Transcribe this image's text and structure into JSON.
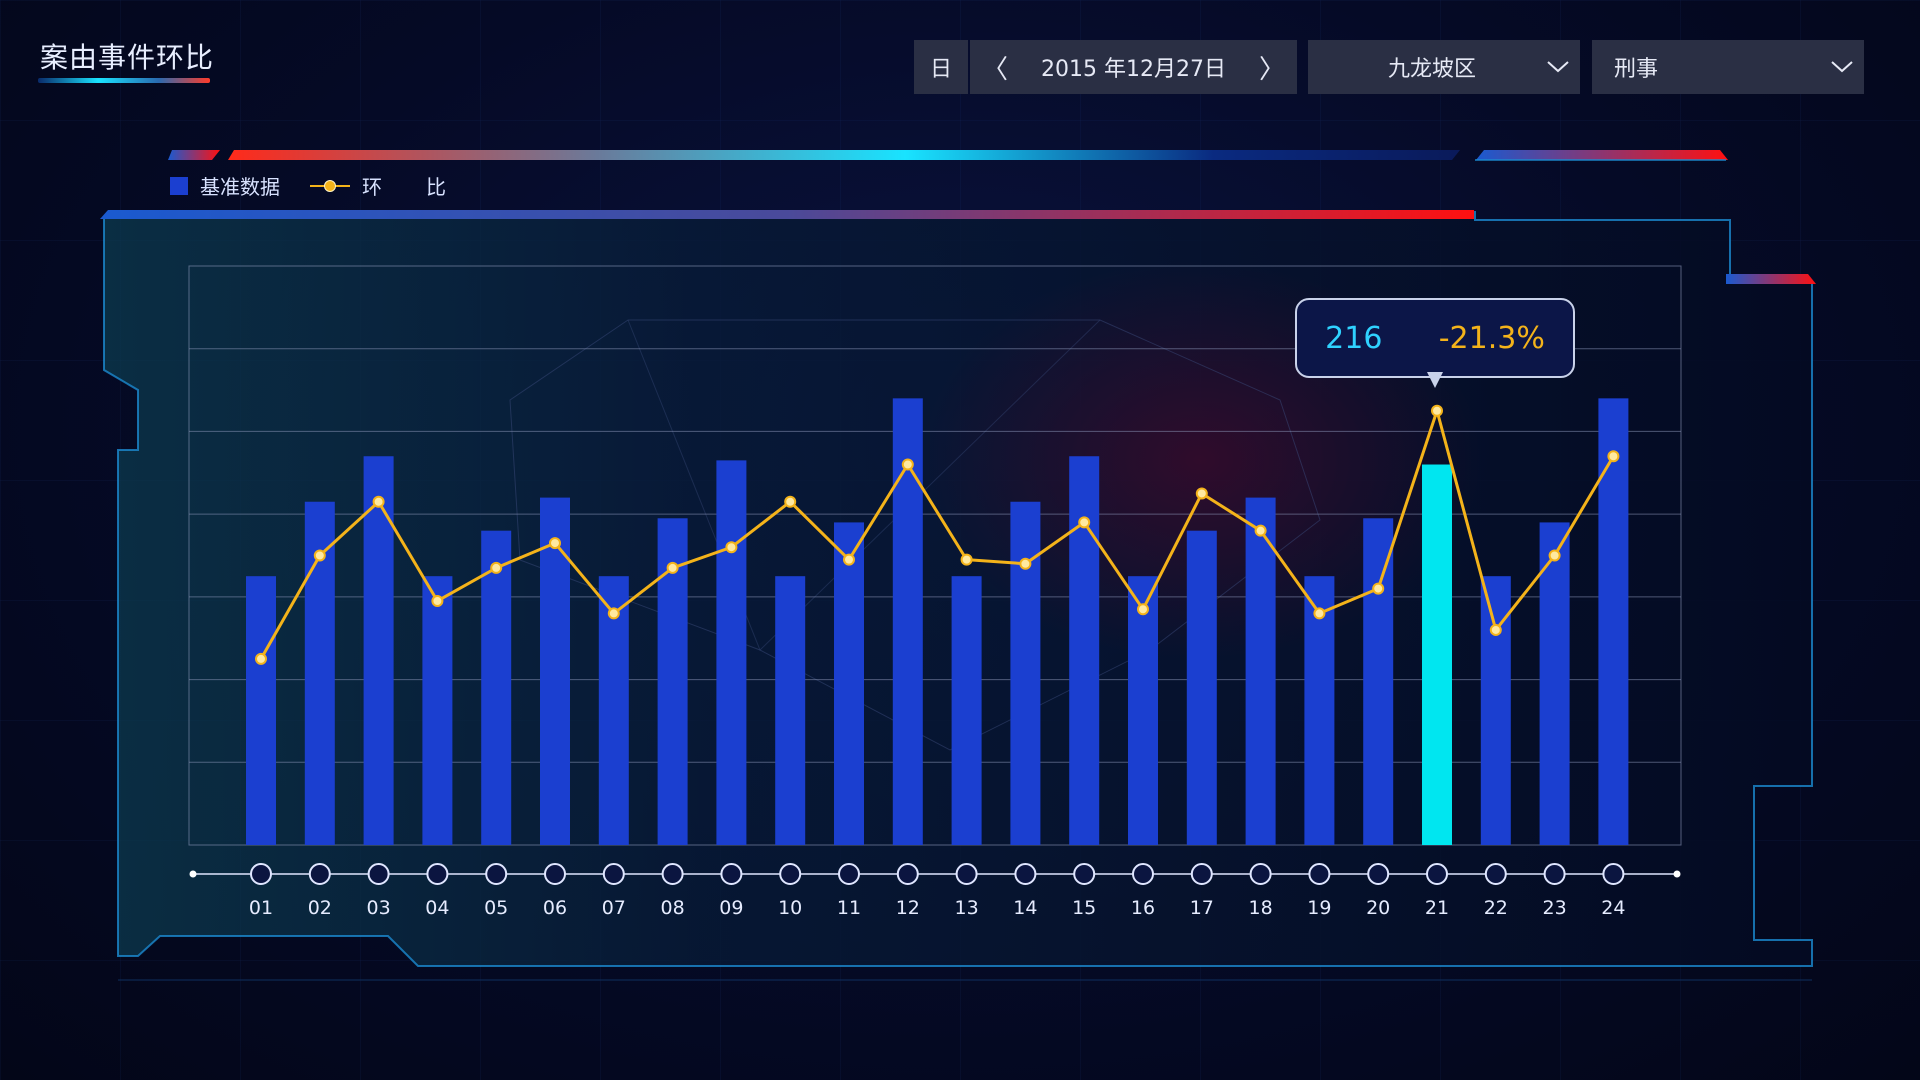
{
  "page": {
    "title": "案由事件环比"
  },
  "controls": {
    "period_label": "日",
    "prev_label": "〈",
    "next_label": "〉",
    "date_value": "2015 年12月27日",
    "region_value": "九龙坡区",
    "type_value": "刑事"
  },
  "legend": {
    "bar_label": "基准数据",
    "line_label": "环比"
  },
  "tooltip": {
    "value": "216",
    "ratio": "-21.3%"
  },
  "colors": {
    "bar": "#1b3fd0",
    "bar_highlight": "#00e6f0",
    "line": "#f4b31a",
    "accent_red": "#ff1a1a",
    "accent_cyan": "#19e3ff"
  },
  "chart_data": {
    "type": "bar",
    "categories": [
      "01",
      "02",
      "03",
      "04",
      "05",
      "06",
      "07",
      "08",
      "09",
      "10",
      "11",
      "12",
      "13",
      "14",
      "15",
      "16",
      "17",
      "18",
      "19",
      "20",
      "21",
      "22",
      "23",
      "24"
    ],
    "series": [
      {
        "name": "基准数据",
        "type": "bar",
        "values": [
          3.25,
          4.15,
          4.7,
          3.25,
          3.8,
          4.2,
          3.25,
          3.95,
          4.65,
          3.25,
          3.9,
          5.4,
          3.25,
          4.15,
          4.7,
          3.25,
          3.8,
          4.2,
          3.25,
          3.95,
          4.6,
          3.25,
          3.9,
          5.4
        ]
      },
      {
        "name": "环比",
        "type": "line",
        "values": [
          2.25,
          3.5,
          4.15,
          2.95,
          3.35,
          3.65,
          2.8,
          3.35,
          3.6,
          4.15,
          3.45,
          4.6,
          3.45,
          3.4,
          3.9,
          2.85,
          4.25,
          3.8,
          2.8,
          3.1,
          5.25,
          2.6,
          3.5,
          4.7
        ]
      }
    ],
    "highlight_index": 20,
    "ylim": [
      0,
      7
    ],
    "grid": true,
    "legend_position": "top-left"
  }
}
